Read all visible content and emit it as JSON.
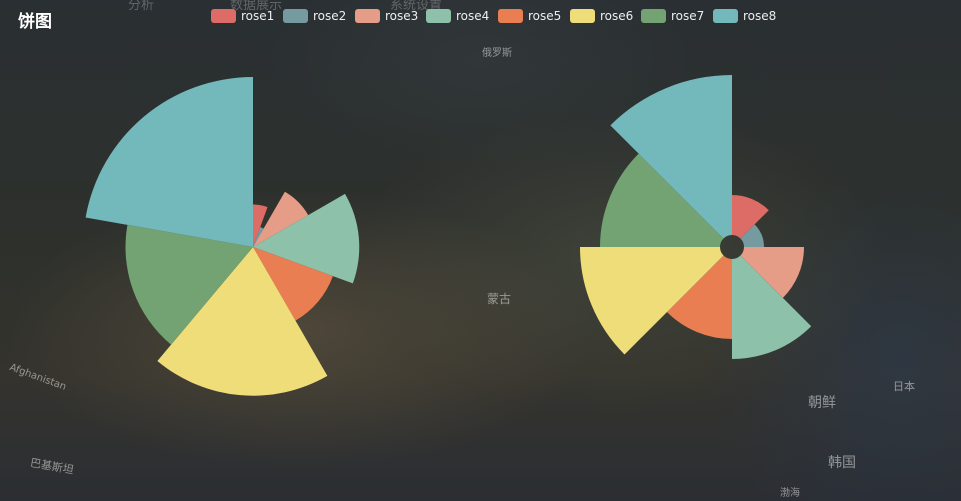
{
  "title": "饼图",
  "menu": [
    "分析",
    "数据展示",
    "系统设置"
  ],
  "map_labels": [
    "俄罗斯",
    "蒙古",
    "朝鲜",
    "韩国",
    "日本",
    "Afghanistan",
    "渤海",
    "巴基斯坦"
  ],
  "colors": [
    "#dd6b66",
    "#759aa0",
    "#e69d87",
    "#8dc1a9",
    "#ea7e53",
    "#eedd78",
    "#73a373",
    "#73b9bc"
  ],
  "chart_data": [
    {
      "type": "pie",
      "rose_type": "radius",
      "legend": [
        "rose1",
        "rose2",
        "rose3",
        "rose4",
        "rose5",
        "rose6",
        "rose7",
        "rose8"
      ],
      "values": [
        10,
        5,
        15,
        25,
        20,
        35,
        30,
        40
      ]
    },
    {
      "type": "pie",
      "rose_type": "area",
      "legend": [
        "rose1",
        "rose2",
        "rose3",
        "rose4",
        "rose5",
        "rose6",
        "rose7",
        "rose8"
      ],
      "values": [
        10,
        5,
        15,
        25,
        20,
        35,
        30,
        40
      ]
    }
  ]
}
